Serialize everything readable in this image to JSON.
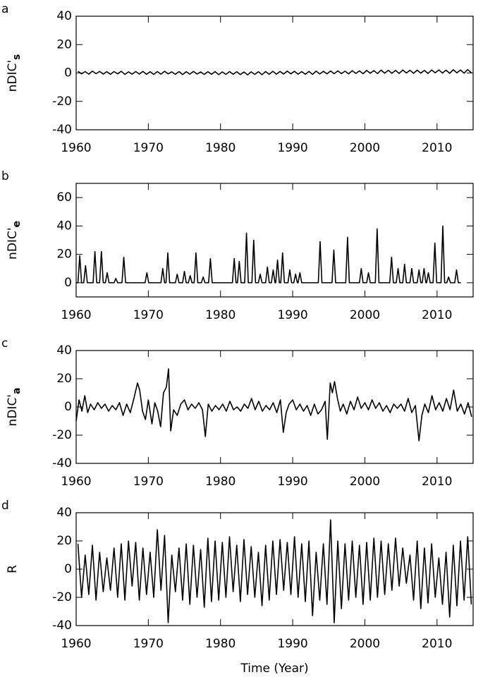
{
  "chart_data": [
    {
      "type": "line",
      "panel_label": "a",
      "ylabel": "nDIC'",
      "ylabel_subscript": "s",
      "color": "#000000",
      "xlim": [
        1960,
        2015
      ],
      "xticks": [
        1960,
        1970,
        1980,
        1990,
        2000,
        2010
      ],
      "ylim": [
        -40,
        40
      ],
      "yticks": [
        -40,
        -20,
        0,
        20,
        40
      ],
      "x": [
        1960.25,
        1960.75,
        1961.25,
        1961.75,
        1962.25,
        1962.75,
        1963.25,
        1963.75,
        1964.25,
        1964.75,
        1965.25,
        1965.75,
        1966.25,
        1966.75,
        1967.25,
        1967.75,
        1968.25,
        1968.75,
        1969.25,
        1969.75,
        1970.25,
        1970.75,
        1971.25,
        1971.75,
        1972.25,
        1972.75,
        1973.25,
        1973.75,
        1974.25,
        1974.75,
        1975.25,
        1975.75,
        1976.25,
        1976.75,
        1977.25,
        1977.75,
        1978.25,
        1978.75,
        1979.25,
        1979.75,
        1980.25,
        1980.75,
        1981.25,
        1981.75,
        1982.25,
        1982.75,
        1983.25,
        1983.75,
        1984.25,
        1984.75,
        1985.25,
        1985.75,
        1986.25,
        1986.75,
        1987.25,
        1987.75,
        1988.25,
        1988.75,
        1989.25,
        1989.75,
        1990.25,
        1990.75,
        1991.25,
        1991.75,
        1992.25,
        1992.75,
        1993.25,
        1993.75,
        1994.25,
        1994.75,
        1995.25,
        1995.75,
        1996.25,
        1996.75,
        1997.25,
        1997.75,
        1998.25,
        1998.75,
        1999.25,
        1999.75,
        2000.25,
        2000.75,
        2001.25,
        2001.75,
        2002.25,
        2002.75,
        2003.25,
        2003.75,
        2004.25,
        2004.75,
        2005.25,
        2005.75,
        2006.25,
        2006.75,
        2007.25,
        2007.75,
        2008.25,
        2008.75,
        2009.25,
        2009.75,
        2010.25,
        2010.75,
        2011.25,
        2011.75,
        2012.25,
        2012.75,
        2013.25,
        2013.75,
        2014.25,
        2014.75
      ],
      "values": [
        1.2,
        -0.6,
        1.0,
        -0.8,
        1.3,
        -0.5,
        1.1,
        -0.7,
        0.9,
        -0.9,
        1.0,
        -0.6,
        1.2,
        -1.0,
        0.8,
        -0.8,
        1.0,
        -0.7,
        1.1,
        -0.9,
        0.9,
        -1.0,
        1.0,
        -0.8,
        1.2,
        -0.6,
        0.8,
        -0.9,
        1.0,
        -1.1,
        0.9,
        -0.8,
        1.1,
        -0.7,
        0.7,
        -1.0,
        0.9,
        -0.9,
        1.0,
        -1.2,
        0.8,
        -1.0,
        1.0,
        -0.9,
        0.9,
        -1.1,
        0.7,
        -1.3,
        0.8,
        -1.0,
        0.9,
        -1.2,
        1.0,
        -0.9,
        1.2,
        -0.8,
        1.1,
        -0.7,
        1.3,
        -0.6,
        1.2,
        -0.8,
        1.0,
        -0.9,
        1.1,
        -1.0,
        1.3,
        -0.7,
        1.2,
        -0.6,
        1.4,
        -0.5,
        1.5,
        -0.4,
        1.3,
        -0.6,
        1.6,
        -0.3,
        1.5,
        -0.5,
        1.8,
        -0.2,
        1.7,
        -0.4,
        2.0,
        -0.1,
        1.9,
        -0.2,
        1.8,
        -0.3,
        2.1,
        0.0,
        1.9,
        -0.2,
        2.0,
        -0.1,
        1.8,
        -0.3,
        2.1,
        0.1,
        2.2,
        0.0,
        2.0,
        -0.2,
        2.3,
        0.1,
        2.1,
        -0.1,
        2.4,
        0.2
      ]
    },
    {
      "type": "line",
      "panel_label": "b",
      "ylabel": "nDIC'",
      "ylabel_subscript": "e",
      "color": "#000000",
      "xlim": [
        1960,
        2015
      ],
      "xticks": [
        1960,
        1970,
        1980,
        1990,
        2000,
        2010
      ],
      "ylim": [
        -10,
        70
      ],
      "yticks": [
        0,
        20,
        40,
        60
      ],
      "x": [
        1960,
        1960.25,
        1960.5,
        1960.75,
        1961.05,
        1961.3,
        1961.55,
        1962.35,
        1962.6,
        1962.85,
        1963.25,
        1963.5,
        1963.75,
        1964.05,
        1964.3,
        1964.55,
        1965.25,
        1965.5,
        1965.75,
        1966.35,
        1966.6,
        1966.85,
        1969.55,
        1969.8,
        1970.05,
        1971.75,
        1972.0,
        1972.25,
        1972.45,
        1972.7,
        1972.95,
        1973.75,
        1974.0,
        1974.25,
        1974.75,
        1975.0,
        1975.25,
        1975.55,
        1975.8,
        1976.05,
        1976.35,
        1976.6,
        1976.85,
        1977.35,
        1977.6,
        1977.85,
        1978.35,
        1978.6,
        1978.85,
        1981.65,
        1981.9,
        1982.15,
        1982.35,
        1982.6,
        1982.85,
        1983.35,
        1983.6,
        1983.85,
        1984.35,
        1984.6,
        1984.85,
        1985.25,
        1985.5,
        1985.75,
        1986.25,
        1986.5,
        1986.75,
        1987.05,
        1987.3,
        1987.55,
        1987.65,
        1987.9,
        1988.15,
        1988.35,
        1988.6,
        1988.85,
        1989.35,
        1989.6,
        1989.85,
        1990.15,
        1990.4,
        1990.65,
        1990.75,
        1991.0,
        1991.25,
        1993.55,
        1993.8,
        1994.05,
        1995.45,
        1995.7,
        1995.95,
        1997.35,
        1997.6,
        1997.85,
        1999.25,
        1999.5,
        1999.75,
        2000.25,
        2000.5,
        2000.75,
        2001.45,
        2001.7,
        2001.95,
        2003.45,
        2003.7,
        2003.95,
        2004.35,
        2004.6,
        2004.85,
        2005.25,
        2005.5,
        2005.75,
        2006.25,
        2006.5,
        2006.75,
        2007.25,
        2007.5,
        2007.75,
        2007.95,
        2008.2,
        2008.45,
        2008.55,
        2008.8,
        2009.05,
        2009.45,
        2009.7,
        2009.95,
        2010.55,
        2010.8,
        2011.05,
        2011.35,
        2011.6,
        2011.85,
        2012.45,
        2012.7,
        2012.95,
        2013.3
      ],
      "values": [
        0,
        0,
        19,
        0,
        0,
        12,
        0,
        0,
        22,
        0,
        0,
        22,
        0,
        0,
        7,
        0,
        0,
        3,
        0,
        0,
        18,
        0,
        0,
        7,
        0,
        0,
        10,
        0,
        0,
        21,
        0,
        0,
        6,
        0,
        0,
        8,
        0,
        0,
        5,
        0,
        0,
        21,
        0,
        0,
        4,
        0,
        0,
        17,
        0,
        0,
        17,
        0,
        0,
        15,
        0,
        0,
        35,
        0,
        0,
        30,
        0,
        0,
        6,
        0,
        0,
        11,
        0,
        0,
        9,
        0,
        0,
        16,
        0,
        0,
        21,
        0,
        0,
        9,
        0,
        0,
        6,
        0,
        0,
        7,
        0,
        0,
        29,
        0,
        0,
        23,
        0,
        0,
        32,
        0,
        0,
        10,
        0,
        0,
        7,
        0,
        0,
        38,
        0,
        0,
        18,
        0,
        0,
        10,
        0,
        0,
        13,
        0,
        0,
        10,
        0,
        0,
        9,
        0,
        0,
        10,
        0,
        0,
        7,
        0,
        0,
        28,
        0,
        0,
        40,
        0,
        0,
        4,
        0,
        0,
        9,
        0,
        0
      ]
    },
    {
      "type": "line",
      "panel_label": "c",
      "ylabel": "nDIC'",
      "ylabel_subscript": "a",
      "color": "#000000",
      "xlim": [
        1960,
        2015
      ],
      "xticks": [
        1960,
        1970,
        1980,
        1990,
        2000,
        2010
      ],
      "ylim": [
        -40,
        40
      ],
      "yticks": [
        -40,
        -20,
        0,
        20,
        40
      ],
      "x": [
        1960.0,
        1960.4,
        1960.8,
        1961.2,
        1961.6,
        1962.0,
        1962.5,
        1963.0,
        1963.5,
        1964.0,
        1964.5,
        1965.0,
        1965.5,
        1966.0,
        1966.5,
        1967.0,
        1967.5,
        1968.0,
        1968.5,
        1968.8,
        1969.2,
        1969.6,
        1970.0,
        1970.5,
        1970.9,
        1971.3,
        1971.7,
        1972.1,
        1972.5,
        1972.8,
        1973.1,
        1973.5,
        1974.0,
        1974.5,
        1975.0,
        1975.5,
        1976.0,
        1976.5,
        1977.0,
        1977.5,
        1977.9,
        1978.3,
        1978.8,
        1979.3,
        1979.8,
        1980.3,
        1980.8,
        1981.3,
        1981.8,
        1982.3,
        1982.8,
        1983.3,
        1983.8,
        1984.3,
        1984.8,
        1985.3,
        1985.8,
        1986.3,
        1986.8,
        1987.3,
        1987.8,
        1988.3,
        1988.7,
        1989.1,
        1989.5,
        1990.0,
        1990.5,
        1991.0,
        1991.5,
        1992.0,
        1992.5,
        1993.0,
        1993.5,
        1994.0,
        1994.5,
        1994.8,
        1995.2,
        1995.5,
        1995.8,
        1996.2,
        1996.6,
        1997.0,
        1997.5,
        1998.0,
        1998.5,
        1999.0,
        1999.5,
        2000.0,
        2000.5,
        2001.0,
        2001.5,
        2002.0,
        2002.5,
        2003.0,
        2003.5,
        2004.0,
        2004.5,
        2005.0,
        2005.5,
        2006.0,
        2006.5,
        2007.0,
        2007.5,
        2007.9,
        2008.3,
        2008.8,
        2009.3,
        2009.8,
        2010.3,
        2010.8,
        2011.3,
        2011.8,
        2012.3,
        2012.8,
        2013.3,
        2013.8,
        2014.3,
        2014.8
      ],
      "values": [
        -10,
        5,
        -3,
        8,
        -4,
        2,
        -2,
        3,
        -1,
        2,
        -3,
        1,
        -2,
        3,
        -6,
        2,
        -4,
        6,
        17,
        12,
        -3,
        -9,
        5,
        -12,
        3,
        -3,
        -14,
        10,
        14,
        27,
        -17,
        -2,
        -6,
        2,
        5,
        -2,
        2,
        -1,
        3,
        -2,
        -21,
        2,
        -3,
        1,
        -2,
        2,
        -3,
        4,
        -2,
        0,
        -3,
        2,
        -1,
        6,
        -2,
        4,
        -3,
        1,
        -2,
        3,
        -4,
        5,
        -18,
        -4,
        2,
        5,
        -2,
        2,
        -3,
        1,
        -6,
        2,
        -5,
        -2,
        4,
        -23,
        17,
        10,
        18,
        6,
        -3,
        2,
        -5,
        4,
        -2,
        7,
        -1,
        3,
        -2,
        5,
        -1,
        3,
        -3,
        1,
        -4,
        2,
        -1,
        2,
        -3,
        6,
        -4,
        1,
        -24,
        -6,
        2,
        -4,
        8,
        -2,
        3,
        -3,
        6,
        -2,
        12,
        -3,
        2,
        -5,
        3,
        -7
      ]
    },
    {
      "type": "line",
      "panel_label": "d",
      "ylabel": "R",
      "xlabel": "Time (Year)",
      "color": "#000000",
      "xlim": [
        1960,
        2015
      ],
      "xticks": [
        1960,
        1970,
        1980,
        1990,
        2000,
        2010
      ],
      "ylim": [
        -40,
        40
      ],
      "yticks": [
        -40,
        -20,
        0,
        20,
        40
      ],
      "x": [
        1960.25,
        1960.75,
        1961.25,
        1961.75,
        1962.25,
        1962.75,
        1963.25,
        1963.75,
        1964.25,
        1964.75,
        1965.25,
        1965.75,
        1966.25,
        1966.75,
        1967.25,
        1967.75,
        1968.25,
        1968.75,
        1969.25,
        1969.75,
        1970.25,
        1970.75,
        1971.25,
        1971.75,
        1972.25,
        1972.75,
        1973.25,
        1973.75,
        1974.25,
        1974.75,
        1975.25,
        1975.75,
        1976.25,
        1976.75,
        1977.25,
        1977.75,
        1978.25,
        1978.75,
        1979.25,
        1979.75,
        1980.25,
        1980.75,
        1981.25,
        1981.75,
        1982.25,
        1982.75,
        1983.25,
        1983.75,
        1984.25,
        1984.75,
        1985.25,
        1985.75,
        1986.25,
        1986.75,
        1987.25,
        1987.75,
        1988.25,
        1988.75,
        1989.25,
        1989.75,
        1990.25,
        1990.75,
        1991.25,
        1991.75,
        1992.25,
        1992.75,
        1993.25,
        1993.75,
        1994.25,
        1994.75,
        1995.25,
        1995.75,
        1996.25,
        1996.75,
        1997.25,
        1997.75,
        1998.25,
        1998.75,
        1999.25,
        1999.75,
        2000.25,
        2000.75,
        2001.25,
        2001.75,
        2002.25,
        2002.75,
        2003.25,
        2003.75,
        2004.25,
        2004.75,
        2005.25,
        2005.75,
        2006.25,
        2006.75,
        2007.25,
        2007.75,
        2008.25,
        2008.75,
        2009.25,
        2009.75,
        2010.25,
        2010.75,
        2011.25,
        2011.75,
        2012.25,
        2012.75,
        2013.25,
        2013.75,
        2014.25,
        2014.75
      ],
      "values": [
        18,
        -20,
        10,
        -18,
        17,
        -22,
        12,
        -16,
        8,
        -15,
        15,
        -20,
        18,
        -22,
        20,
        -12,
        19,
        -22,
        15,
        -18,
        12,
        -20,
        28,
        -15,
        24,
        -38,
        10,
        -16,
        15,
        -22,
        18,
        -25,
        17,
        -20,
        14,
        -27,
        22,
        -23,
        20,
        -22,
        19,
        -20,
        23,
        -16,
        17,
        -23,
        21,
        -18,
        16,
        -20,
        12,
        -26,
        17,
        -22,
        20,
        -18,
        21,
        -15,
        19,
        -18,
        23,
        -20,
        18,
        -23,
        20,
        -33,
        12,
        -22,
        18,
        -25,
        35,
        -38,
        20,
        -28,
        18,
        -22,
        20,
        -20,
        17,
        -25,
        19,
        -22,
        22,
        -20,
        20,
        -18,
        18,
        -15,
        22,
        -12,
        15,
        -10,
        10,
        -22,
        20,
        -28,
        15,
        -24,
        18,
        -20,
        8,
        -25,
        12,
        -34,
        17,
        -26,
        20,
        -22,
        23,
        -25
      ]
    }
  ]
}
